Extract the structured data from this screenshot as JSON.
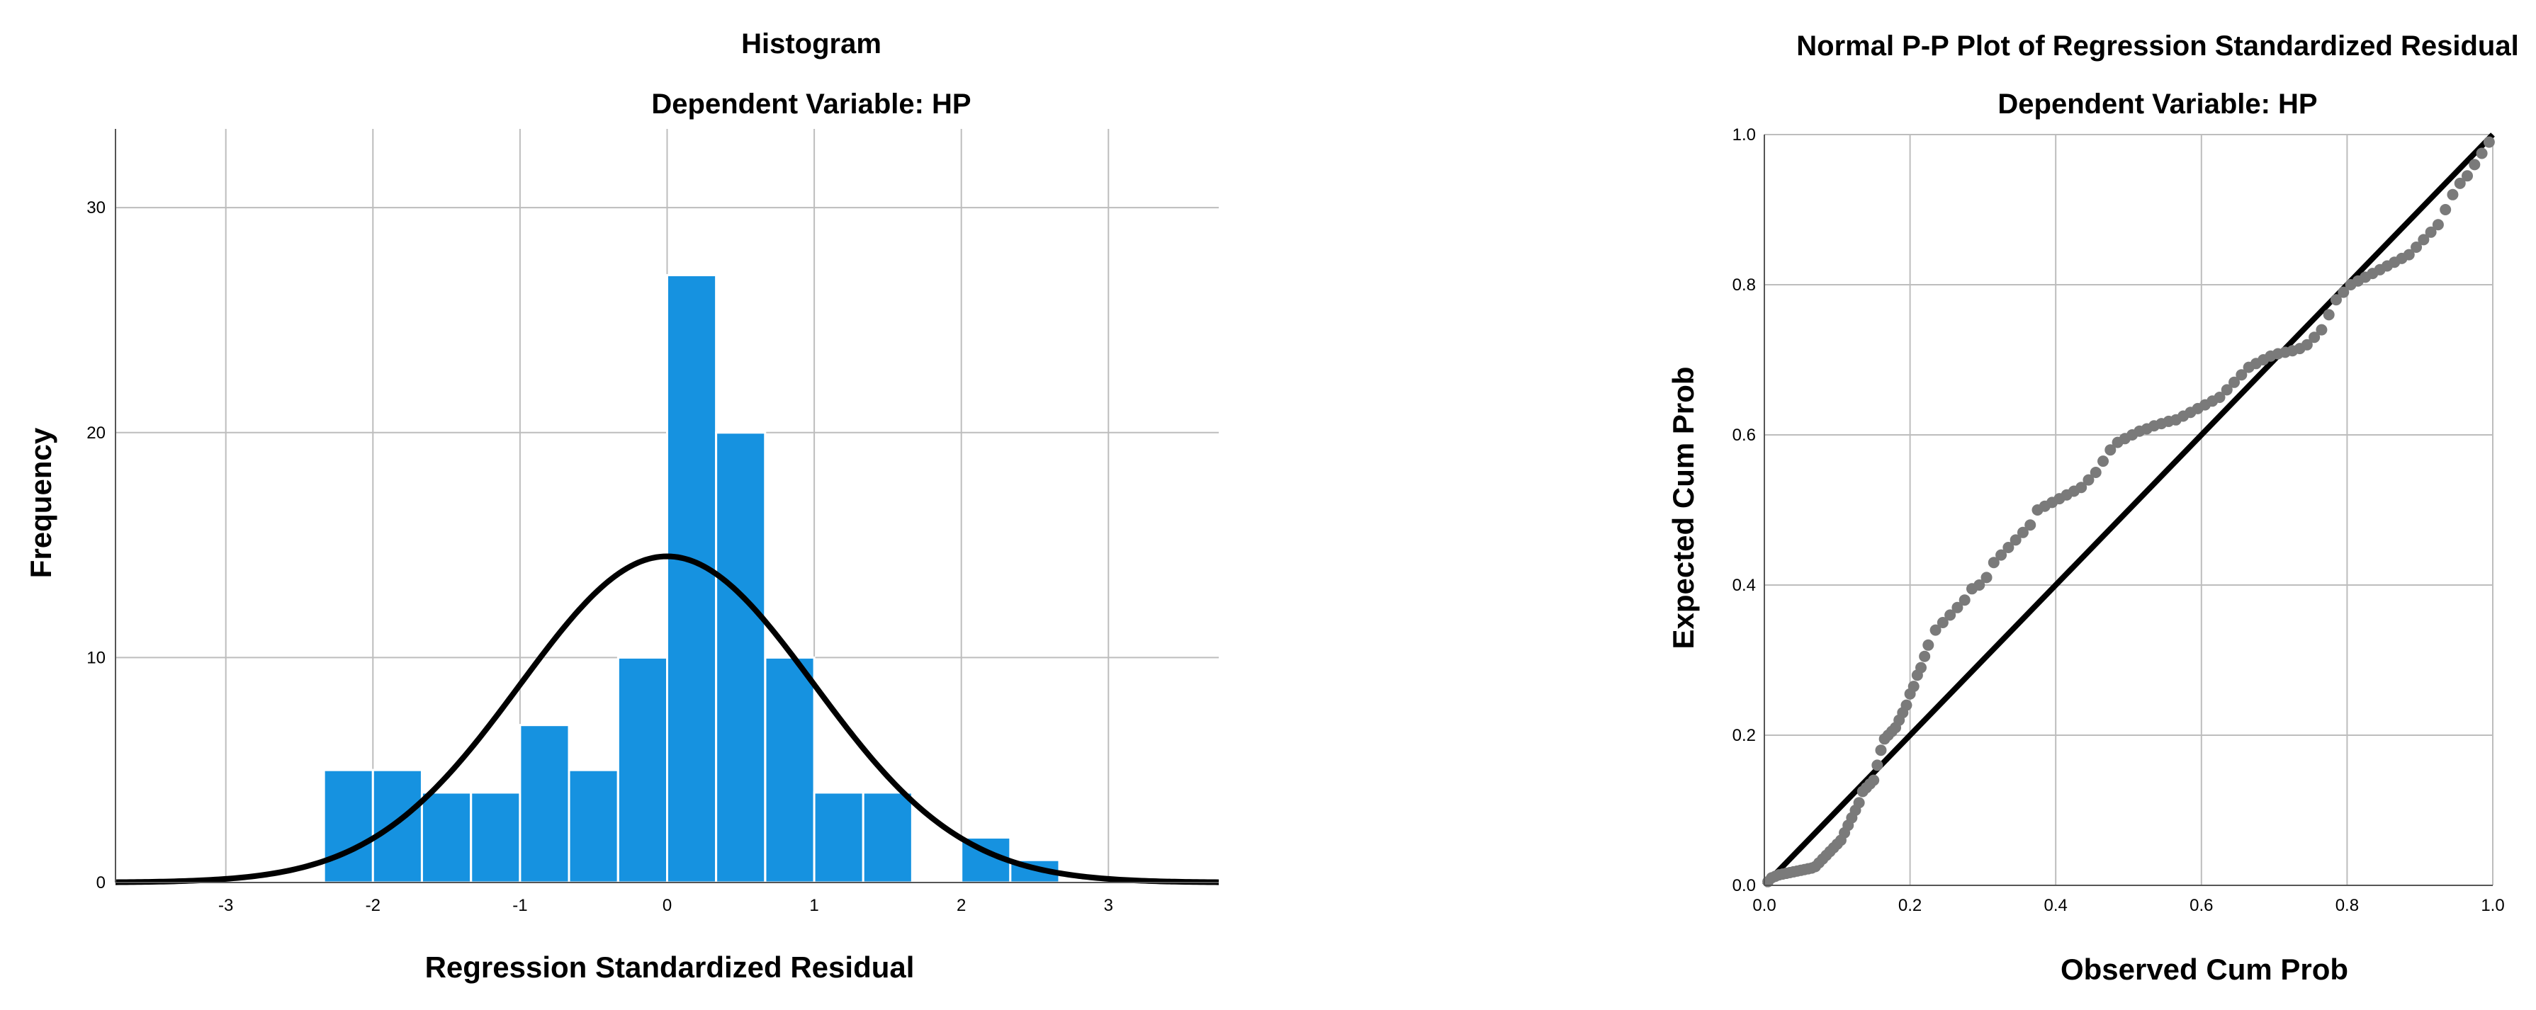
{
  "chart_data": [
    {
      "type": "bar",
      "title": "Histogram",
      "subtitle": "Dependent Variable: HP",
      "xlabel": "Regression Standardized Residual",
      "ylabel": "Frequency",
      "xlim": [
        -3.75,
        3.75
      ],
      "ylim": [
        0,
        33.5
      ],
      "xticks": [
        -3,
        -2,
        -1,
        0,
        1,
        2,
        3
      ],
      "yticks": [
        0,
        10,
        20,
        30
      ],
      "bin_width": 0.333,
      "bins": [
        {
          "start": -2.333,
          "count": 5
        },
        {
          "start": -2.0,
          "count": 5
        },
        {
          "start": -1.667,
          "count": 4
        },
        {
          "start": -1.333,
          "count": 4
        },
        {
          "start": -1.0,
          "count": 7
        },
        {
          "start": -0.667,
          "count": 5
        },
        {
          "start": -0.333,
          "count": 10
        },
        {
          "start": 0.0,
          "count": 27
        },
        {
          "start": 0.333,
          "count": 20
        },
        {
          "start": 0.667,
          "count": 10
        },
        {
          "start": 1.0,
          "count": 4
        },
        {
          "start": 1.333,
          "count": 4
        },
        {
          "start": 1.667,
          "count": 0
        },
        {
          "start": 2.0,
          "count": 2
        },
        {
          "start": 2.333,
          "count": 1
        }
      ],
      "normal_curve": {
        "mean": 0,
        "sd": 1,
        "peak": 14.5
      },
      "grid": true
    },
    {
      "type": "scatter",
      "title": "Normal P-P Plot of Regression Standardized Residual",
      "subtitle": "Dependent Variable: HP",
      "xlabel": "Observed Cum Prob",
      "ylabel": "Expected Cum Prob",
      "xlim": [
        0,
        1
      ],
      "ylim": [
        0,
        1
      ],
      "xticks": [
        "0.0",
        "0.2",
        "0.4",
        "0.6",
        "0.8",
        "1.0"
      ],
      "yticks": [
        "0.0",
        "0.2",
        "0.4",
        "0.6",
        "0.8",
        "1.0"
      ],
      "reference_line": [
        [
          0,
          0
        ],
        [
          1,
          1
        ]
      ],
      "points": [
        [
          0.005,
          0.005
        ],
        [
          0.01,
          0.01
        ],
        [
          0.015,
          0.012
        ],
        [
          0.02,
          0.014
        ],
        [
          0.025,
          0.015
        ],
        [
          0.03,
          0.016
        ],
        [
          0.035,
          0.017
        ],
        [
          0.04,
          0.018
        ],
        [
          0.045,
          0.019
        ],
        [
          0.05,
          0.02
        ],
        [
          0.055,
          0.021
        ],
        [
          0.06,
          0.022
        ],
        [
          0.065,
          0.023
        ],
        [
          0.07,
          0.025
        ],
        [
          0.075,
          0.03
        ],
        [
          0.08,
          0.035
        ],
        [
          0.085,
          0.04
        ],
        [
          0.09,
          0.045
        ],
        [
          0.095,
          0.05
        ],
        [
          0.1,
          0.055
        ],
        [
          0.105,
          0.06
        ],
        [
          0.11,
          0.07
        ],
        [
          0.115,
          0.08
        ],
        [
          0.12,
          0.09
        ],
        [
          0.125,
          0.1
        ],
        [
          0.13,
          0.11
        ],
        [
          0.135,
          0.125
        ],
        [
          0.14,
          0.13
        ],
        [
          0.145,
          0.135
        ],
        [
          0.15,
          0.14
        ],
        [
          0.155,
          0.16
        ],
        [
          0.16,
          0.18
        ],
        [
          0.165,
          0.195
        ],
        [
          0.17,
          0.2
        ],
        [
          0.175,
          0.205
        ],
        [
          0.18,
          0.21
        ],
        [
          0.185,
          0.22
        ],
        [
          0.19,
          0.23
        ],
        [
          0.195,
          0.24
        ],
        [
          0.2,
          0.255
        ],
        [
          0.205,
          0.265
        ],
        [
          0.21,
          0.28
        ],
        [
          0.215,
          0.29
        ],
        [
          0.22,
          0.305
        ],
        [
          0.225,
          0.32
        ],
        [
          0.235,
          0.34
        ],
        [
          0.245,
          0.35
        ],
        [
          0.255,
          0.36
        ],
        [
          0.265,
          0.37
        ],
        [
          0.275,
          0.38
        ],
        [
          0.285,
          0.395
        ],
        [
          0.295,
          0.4
        ],
        [
          0.305,
          0.41
        ],
        [
          0.315,
          0.43
        ],
        [
          0.325,
          0.44
        ],
        [
          0.335,
          0.45
        ],
        [
          0.345,
          0.46
        ],
        [
          0.355,
          0.47
        ],
        [
          0.365,
          0.48
        ],
        [
          0.375,
          0.5
        ],
        [
          0.385,
          0.505
        ],
        [
          0.395,
          0.51
        ],
        [
          0.405,
          0.515
        ],
        [
          0.415,
          0.52
        ],
        [
          0.425,
          0.525
        ],
        [
          0.435,
          0.53
        ],
        [
          0.445,
          0.54
        ],
        [
          0.455,
          0.55
        ],
        [
          0.465,
          0.565
        ],
        [
          0.475,
          0.58
        ],
        [
          0.485,
          0.59
        ],
        [
          0.495,
          0.595
        ],
        [
          0.505,
          0.6
        ],
        [
          0.515,
          0.605
        ],
        [
          0.525,
          0.608
        ],
        [
          0.535,
          0.612
        ],
        [
          0.545,
          0.615
        ],
        [
          0.555,
          0.618
        ],
        [
          0.565,
          0.62
        ],
        [
          0.575,
          0.625
        ],
        [
          0.585,
          0.63
        ],
        [
          0.595,
          0.635
        ],
        [
          0.605,
          0.64
        ],
        [
          0.615,
          0.645
        ],
        [
          0.625,
          0.65
        ],
        [
          0.635,
          0.66
        ],
        [
          0.645,
          0.67
        ],
        [
          0.655,
          0.68
        ],
        [
          0.665,
          0.69
        ],
        [
          0.675,
          0.695
        ],
        [
          0.685,
          0.7
        ],
        [
          0.695,
          0.705
        ],
        [
          0.705,
          0.708
        ],
        [
          0.715,
          0.71
        ],
        [
          0.725,
          0.712
        ],
        [
          0.735,
          0.715
        ],
        [
          0.745,
          0.72
        ],
        [
          0.755,
          0.73
        ],
        [
          0.765,
          0.74
        ],
        [
          0.775,
          0.76
        ],
        [
          0.785,
          0.78
        ],
        [
          0.795,
          0.79
        ],
        [
          0.805,
          0.8
        ],
        [
          0.815,
          0.805
        ],
        [
          0.825,
          0.81
        ],
        [
          0.835,
          0.815
        ],
        [
          0.845,
          0.82
        ],
        [
          0.855,
          0.825
        ],
        [
          0.865,
          0.83
        ],
        [
          0.875,
          0.835
        ],
        [
          0.885,
          0.84
        ],
        [
          0.895,
          0.85
        ],
        [
          0.905,
          0.86
        ],
        [
          0.915,
          0.87
        ],
        [
          0.925,
          0.88
        ],
        [
          0.935,
          0.9
        ],
        [
          0.945,
          0.92
        ],
        [
          0.955,
          0.935
        ],
        [
          0.965,
          0.945
        ],
        [
          0.975,
          0.96
        ],
        [
          0.985,
          0.975
        ],
        [
          0.995,
          0.99
        ]
      ],
      "grid": true
    }
  ]
}
